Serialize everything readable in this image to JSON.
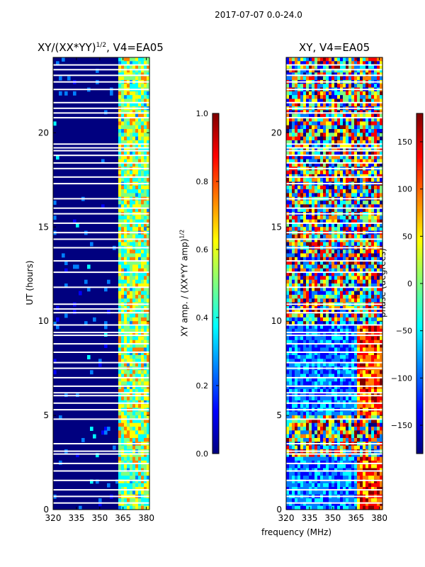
{
  "suptitle": "2017-07-07 0.0-24.0",
  "colors": {
    "jet": [
      "#00007f",
      "#0000ff",
      "#007fff",
      "#00ffff",
      "#7fff7f",
      "#ffff00",
      "#ff7f00",
      "#ff0000",
      "#7f0000"
    ],
    "gap": "#ffffff"
  },
  "chart_data": [
    {
      "type": "heatmap",
      "id": "left",
      "title": "XY/(XX*YY)",
      "title_exp": "1/2",
      "title_suffix": ", V4=EA05",
      "xlabel": "",
      "ylabel": "UT (hours)",
      "xlim": [
        320,
        382
      ],
      "ylim": [
        0,
        24
      ],
      "xticks": [
        320,
        335,
        350,
        365,
        380
      ],
      "yticks": [
        0,
        5,
        10,
        15,
        20
      ],
      "description_bands": "signal mostly in 362-382 MHz channels",
      "gaps_hours": [
        0.35,
        0.7,
        1.05,
        1.55,
        2.05,
        2.45,
        2.95,
        3.1,
        3.5,
        4.8,
        5.3,
        5.65,
        6.05,
        6.2,
        6.55,
        7.0,
        7.5,
        7.8,
        8.35,
        8.8,
        9.25,
        9.4,
        9.8,
        10.45,
        10.65,
        10.9,
        11.8,
        12.6,
        13.2,
        13.9,
        14.35,
        14.7,
        15.2,
        15.7,
        16.0,
        16.5,
        17.3,
        17.65,
        18.1,
        18.4,
        18.8,
        19.05,
        19.2,
        19.4,
        20.8,
        21.05,
        21.3,
        21.6,
        22.3,
        22.7,
        23.05,
        23.35,
        23.6
      ]
    },
    {
      "type": "heatmap",
      "id": "right",
      "title": "XY, V4=EA05",
      "xlabel": "frequency (MHz)",
      "ylabel": "",
      "xlim": [
        320,
        382
      ],
      "ylim": [
        0,
        24
      ],
      "xticks": [
        320,
        335,
        350,
        365,
        380
      ],
      "yticks": [
        0,
        5,
        10,
        15,
        20
      ],
      "gaps_hours": [
        0.35,
        0.7,
        1.05,
        1.55,
        2.05,
        2.45,
        2.95,
        3.1,
        3.5,
        4.8,
        5.3,
        5.65,
        6.05,
        6.2,
        6.55,
        7.0,
        7.5,
        7.8,
        8.35,
        8.8,
        9.25,
        9.4,
        9.8,
        10.45,
        10.65,
        10.9,
        11.8,
        12.6,
        13.2,
        13.9,
        14.35,
        14.7,
        15.2,
        15.7,
        16.0,
        16.5,
        17.3,
        17.65,
        18.1,
        18.4,
        18.8,
        19.05,
        19.2,
        19.4,
        20.8,
        21.05,
        21.3,
        21.6,
        22.3,
        22.7,
        23.05,
        23.35,
        23.6
      ]
    }
  ],
  "colorbars": [
    {
      "id": "amp",
      "label": "XY amp. / (XX*YY amp)",
      "label_exp": "1/2",
      "range": [
        0.0,
        1.0
      ],
      "ticks": [
        "0.0",
        "0.2",
        "0.4",
        "0.6",
        "0.8",
        "1.0"
      ],
      "tick_values": [
        0.0,
        0.2,
        0.4,
        0.6,
        0.8,
        1.0
      ]
    },
    {
      "id": "phase",
      "label": "phase (degrees)",
      "range": [
        -180,
        180
      ],
      "ticks": [
        "−150",
        "−100",
        "−50",
        "0",
        "50",
        "100",
        "150"
      ],
      "tick_values": [
        -150,
        -100,
        -50,
        0,
        50,
        100,
        150
      ]
    }
  ]
}
